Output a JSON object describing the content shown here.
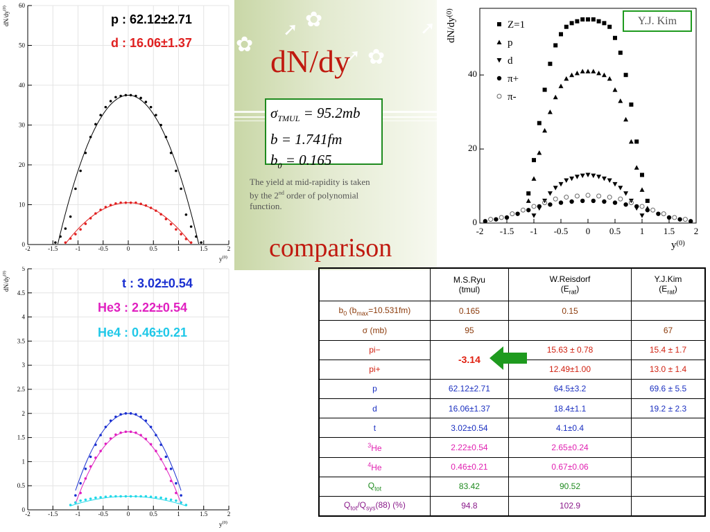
{
  "slide": {
    "title": "dN/dy",
    "formula": {
      "sigma_sym": "σ",
      "sigma_sub": "TMUL",
      "sigma_val": "= 95.2mb",
      "b_line": "b = 1.741fm",
      "b0_sym": "b",
      "b0_sub": "0",
      "b0_val": "= 0.165"
    },
    "note": {
      "line1": "The yield at mid-rapidity is taken",
      "line2_a": "by the 2",
      "line2_sup": "nd",
      "line2_b": " order of polynomial",
      "line3": "function."
    },
    "comparison_title": "comparison",
    "author_box": "Y.J. Kim",
    "colors": {
      "title_red": "#c01a10",
      "box_green": "#1e8a1e"
    }
  },
  "labels": {
    "p": "p : 62.12±2.71",
    "d": "d : 16.06±1.37",
    "t": "t : 3.02±0.54",
    "he3": "He3 : 2.22±0.54",
    "he4": "He4 : 0.46±0.21"
  },
  "table": {
    "headers": [
      {
        "a": "",
        "b": ""
      },
      {
        "a": "M.S.Ryu",
        "b": "(tmul)"
      },
      {
        "a": "W.Reisdorf",
        "b": "(E",
        "bsub": "rat",
        "bend": ")"
      },
      {
        "a": "Y.J.Kim",
        "b": "(E",
        "bsub": "rat",
        "bend": ")"
      }
    ],
    "b0_label": {
      "pre": "b",
      "sub0": "0",
      "mid": " (b",
      "submax": "max",
      "post": "=10.531fm)"
    },
    "rows": [
      {
        "key": "b0",
        "color": "#8b3a0a",
        "ryu": "0.165",
        "reis": "0.15",
        "kim": ""
      },
      {
        "key": "σ (mb)",
        "color": "#8b3a0a",
        "ryu": "95",
        "reis": "",
        "kim": "67"
      },
      {
        "key": "pi−",
        "color": "#d02010",
        "ryu": "-3.14",
        "reis": "15.63 ± 0.78",
        "kim": "15.4 ± 1.7"
      },
      {
        "key": "pi+",
        "color": "#d02010",
        "ryu": "",
        "reis": "12.49±1.00",
        "kim": "13.0 ± 1.4"
      },
      {
        "key": "p",
        "color": "#1a2fc0",
        "ryu": "62.12±2.71",
        "reis": "64.5±3.2",
        "kim": "69.6  ± 5.5"
      },
      {
        "key": "d",
        "color": "#1a2fc0",
        "ryu": "16.06±1.37",
        "reis": "18.4±1.1",
        "kim": "19.2 ± 2.3"
      },
      {
        "key": "t",
        "color": "#1a2fc0",
        "ryu": "3.02±0.54",
        "reis": "4.1±0.4",
        "kim": ""
      },
      {
        "key": "He",
        "sup": "3",
        "color": "#e020b0",
        "ryu": "2.22±0.54",
        "reis": "2.65±0.24",
        "kim": ""
      },
      {
        "key": "He",
        "sup": "4",
        "color": "#e020b0",
        "ryu": "0.46±0.21",
        "reis": "0.67±0.06",
        "kim": ""
      },
      {
        "key": "Q",
        "sub": "tot",
        "color": "#1e8a1e",
        "ryu": "83.42",
        "reis": "90.52",
        "kim": ""
      },
      {
        "key": "Qtot/Qsys",
        "color": "#8a1a8a",
        "ryu": "94.8",
        "reis": "102.9",
        "kim": ""
      }
    ],
    "qratio": {
      "q1": "Q",
      "s1": "tot",
      "slash": "/Q",
      "s2": "sys",
      "tail": "(88) (%)"
    }
  },
  "chart_data": [
    {
      "type": "scatter",
      "ylabel": "dN/dy",
      "ylabel_sup": "(0)",
      "xlabel": "y",
      "xlabel_sup": "(0)",
      "xlim": [
        -2,
        2
      ],
      "ylim": [
        0,
        60
      ],
      "xticks": [
        "-2",
        "-1.5",
        "-1",
        "-0.5",
        "0",
        "0.5",
        "1",
        "1.5",
        "2"
      ],
      "yticks": [
        "0",
        "10",
        "20",
        "30",
        "40",
        "50",
        "60"
      ],
      "series": [
        {
          "name": "p",
          "color": "#000000",
          "fit": [
            37.5,
            -19.0
          ],
          "x": [
            -1.45,
            -1.35,
            -1.25,
            -1.15,
            -1.05,
            -0.95,
            -0.85,
            -0.75,
            -0.65,
            -0.55,
            -0.45,
            -0.35,
            -0.25,
            -0.15,
            -0.05,
            0.05,
            0.15,
            0.25,
            0.35,
            0.45,
            0.55,
            0.65,
            0.75,
            0.85,
            0.95,
            1.05,
            1.15,
            1.25,
            1.35,
            1.45
          ],
          "y": [
            0.5,
            2.0,
            4.0,
            7.0,
            14.0,
            18.5,
            23.0,
            27.0,
            30.2,
            32.5,
            34.5,
            36.0,
            37.0,
            37.3,
            37.5,
            37.5,
            37.3,
            36.8,
            35.8,
            34.5,
            32.5,
            30.0,
            27.0,
            23.0,
            18.5,
            14.0,
            7.5,
            4.5,
            2.0,
            0.5
          ]
        },
        {
          "name": "d",
          "color": "#e02020",
          "fit": [
            10.5,
            -6.6
          ],
          "x": [
            -1.25,
            -1.15,
            -1.05,
            -0.95,
            -0.85,
            -0.75,
            -0.65,
            -0.55,
            -0.45,
            -0.35,
            -0.25,
            -0.15,
            -0.05,
            0.05,
            0.15,
            0.25,
            0.35,
            0.45,
            0.55,
            0.65,
            0.75,
            0.85,
            0.95,
            1.05,
            1.15,
            1.25
          ],
          "y": [
            0.5,
            1.5,
            2.6,
            3.8,
            5.2,
            6.6,
            7.8,
            8.7,
            9.4,
            9.9,
            10.3,
            10.5,
            10.5,
            10.5,
            10.5,
            10.2,
            9.8,
            9.2,
            8.5,
            7.6,
            6.4,
            5.1,
            3.8,
            2.6,
            1.4,
            0.5
          ]
        }
      ]
    },
    {
      "type": "scatter",
      "ylabel": "dN/dy",
      "ylabel_sup": "(0)",
      "xlabel": "y",
      "xlabel_sup": "(0)",
      "xlim": [
        -2,
        2
      ],
      "ylim": [
        0,
        5
      ],
      "xticks": [
        "-2",
        "-1.5",
        "-1",
        "-0.5",
        "0",
        "0.5",
        "1",
        "1.5",
        "2"
      ],
      "yticks": [
        "0",
        "0.5",
        "1",
        "1.5",
        "2",
        "2.5",
        "3",
        "3.5",
        "4",
        "4.5",
        "5"
      ],
      "series": [
        {
          "name": "t",
          "color": "#1a2fd0",
          "fit": [
            2.0,
            -1.45
          ],
          "x": [
            -1.05,
            -0.95,
            -0.85,
            -0.75,
            -0.65,
            -0.55,
            -0.45,
            -0.35,
            -0.25,
            -0.15,
            -0.05,
            0.05,
            0.15,
            0.25,
            0.35,
            0.45,
            0.55,
            0.65,
            0.75,
            0.85,
            0.95,
            1.05
          ],
          "y": [
            0.3,
            0.55,
            0.85,
            1.1,
            1.35,
            1.55,
            1.72,
            1.85,
            1.93,
            1.98,
            2.0,
            2.0,
            1.98,
            1.93,
            1.85,
            1.72,
            1.55,
            1.35,
            1.1,
            0.85,
            0.55,
            0.3
          ]
        },
        {
          "name": "He3",
          "color": "#e020c0",
          "fit": [
            1.62,
            -1.35
          ],
          "x": [
            -1.05,
            -0.95,
            -0.85,
            -0.75,
            -0.65,
            -0.55,
            -0.45,
            -0.35,
            -0.25,
            -0.15,
            -0.05,
            0.05,
            0.15,
            0.25,
            0.35,
            0.45,
            0.55,
            0.65,
            0.75,
            0.85,
            0.95,
            1.05
          ],
          "y": [
            0.15,
            0.35,
            0.65,
            0.9,
            1.08,
            1.22,
            1.37,
            1.48,
            1.56,
            1.6,
            1.62,
            1.62,
            1.6,
            1.55,
            1.47,
            1.36,
            1.22,
            1.05,
            0.85,
            0.6,
            0.35,
            0.15
          ]
        },
        {
          "name": "He4",
          "color": "#20d8e8",
          "fit": [
            0.28,
            -0.15
          ],
          "x": [
            -1.15,
            -1.05,
            -0.95,
            -0.85,
            -0.75,
            -0.65,
            -0.55,
            -0.45,
            -0.35,
            -0.25,
            -0.15,
            -0.05,
            0.05,
            0.15,
            0.25,
            0.35,
            0.45,
            0.55,
            0.65,
            0.75,
            0.85,
            0.95,
            1.05,
            1.15
          ],
          "y": [
            0.1,
            0.15,
            0.19,
            0.21,
            0.23,
            0.25,
            0.26,
            0.27,
            0.28,
            0.28,
            0.28,
            0.28,
            0.28,
            0.28,
            0.28,
            0.28,
            0.27,
            0.26,
            0.25,
            0.23,
            0.21,
            0.19,
            0.15,
            0.1
          ]
        }
      ]
    },
    {
      "type": "scatter",
      "ylabel": "dN/dy",
      "ylabel_sup": "(0)",
      "xlabel": "y",
      "xlabel_sup": "(0)",
      "xlim": [
        -2,
        2
      ],
      "ylim": [
        0,
        58
      ],
      "xticks": [
        "-2",
        "-1.5",
        "-1",
        "-0.5",
        "0",
        "0.5",
        "1",
        "1.5",
        "2"
      ],
      "yticks": [
        "0",
        "20",
        "40"
      ],
      "legend_position": "top-left",
      "series": [
        {
          "name": "Z=1",
          "marker": "square",
          "color": "#000000",
          "x": [
            -1.1,
            -1.0,
            -0.9,
            -0.8,
            -0.7,
            -0.6,
            -0.5,
            -0.4,
            -0.3,
            -0.2,
            -0.1,
            0.0,
            0.1,
            0.2,
            0.3,
            0.4,
            0.5,
            0.6,
            0.7,
            0.8,
            0.9,
            1.0,
            1.1
          ],
          "y": [
            8,
            17,
            27,
            36,
            43,
            48,
            51,
            53,
            54,
            54.5,
            55,
            55,
            55,
            54.5,
            54,
            53,
            50,
            46,
            40,
            32,
            22,
            13,
            6
          ]
        },
        {
          "name": "p",
          "marker": "triangle-up",
          "color": "#000000",
          "x": [
            -1.1,
            -1.0,
            -0.9,
            -0.8,
            -0.7,
            -0.6,
            -0.5,
            -0.4,
            -0.3,
            -0.2,
            -0.1,
            0.0,
            0.1,
            0.2,
            0.3,
            0.4,
            0.5,
            0.6,
            0.7,
            0.8,
            0.9,
            1.0,
            1.1
          ],
          "y": [
            6,
            12,
            19,
            25,
            30,
            34,
            37,
            39,
            40,
            40.5,
            41,
            41,
            41,
            40.5,
            40,
            39,
            36,
            33,
            28,
            22,
            15,
            9,
            4
          ]
        },
        {
          "name": "d",
          "marker": "triangle-down",
          "color": "#000000",
          "x": [
            -1.0,
            -0.9,
            -0.8,
            -0.7,
            -0.6,
            -0.5,
            -0.4,
            -0.3,
            -0.2,
            -0.1,
            0.0,
            0.1,
            0.2,
            0.3,
            0.4,
            0.5,
            0.6,
            0.7,
            0.8,
            0.9,
            1.0
          ],
          "y": [
            2,
            4,
            6,
            8,
            9.5,
            10.5,
            11.5,
            12,
            12.5,
            12.8,
            13,
            12.8,
            12.5,
            12,
            11.5,
            10.5,
            9.5,
            8,
            6,
            4,
            2
          ]
        },
        {
          "name": "π+",
          "marker": "circle",
          "color": "#000000",
          "x": [
            -1.9,
            -1.7,
            -1.5,
            -1.3,
            -1.1,
            -0.9,
            -0.7,
            -0.5,
            -0.3,
            -0.1,
            0.1,
            0.3,
            0.5,
            0.7,
            0.9,
            1.1,
            1.3,
            1.5,
            1.7,
            1.9
          ],
          "y": [
            0.5,
            1,
            1.5,
            2.5,
            3.5,
            4.5,
            5,
            5.5,
            5.8,
            6,
            6,
            5.8,
            5.5,
            5,
            4.5,
            3.5,
            2.5,
            1.5,
            1,
            0.5
          ]
        },
        {
          "name": "π-",
          "marker": "circle-open",
          "color": "#666666",
          "x": [
            -1.8,
            -1.6,
            -1.4,
            -1.2,
            -1.0,
            -0.8,
            -0.6,
            -0.4,
            -0.2,
            0.0,
            0.2,
            0.4,
            0.6,
            0.8,
            1.0,
            1.2,
            1.4,
            1.6,
            1.8
          ],
          "y": [
            1,
            1.5,
            2.5,
            3.5,
            4.5,
            5.5,
            6.5,
            7,
            7.3,
            7.5,
            7.3,
            7,
            6.5,
            5.5,
            4.5,
            3.5,
            2.5,
            1.5,
            1
          ]
        }
      ]
    }
  ]
}
